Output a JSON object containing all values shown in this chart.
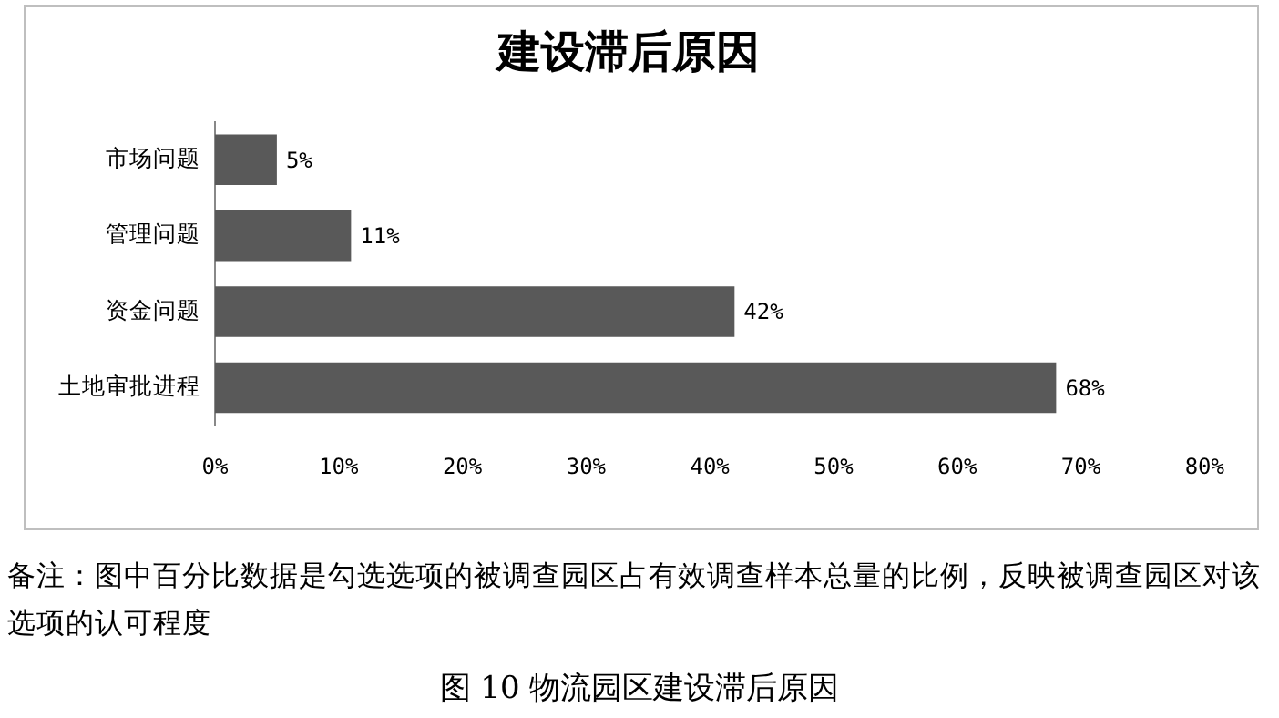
{
  "chart_data": {
    "type": "bar",
    "orientation": "horizontal",
    "title": "建设滞后原因",
    "categories": [
      "市场问题",
      "管理问题",
      "资金问题",
      "土地审批进程"
    ],
    "values": [
      5,
      11,
      42,
      68
    ],
    "color": "#595959",
    "value_labels": [
      "5%",
      "11%",
      "42%",
      "68%"
    ],
    "xlim": [
      0,
      80
    ],
    "xticks": [
      {
        "value": 0,
        "label": "0%"
      },
      {
        "value": 10,
        "label": "10%"
      },
      {
        "value": 20,
        "label": "20%"
      },
      {
        "value": 30,
        "label": "30%"
      },
      {
        "value": 40,
        "label": "40%"
      },
      {
        "value": 50,
        "label": "50%"
      },
      {
        "value": 60,
        "label": "60%"
      },
      {
        "value": 70,
        "label": "70%"
      },
      {
        "value": 80,
        "label": "80%"
      }
    ],
    "grid": false,
    "legend": false,
    "annotations": [
      "备注：图中百分比数据是勾选选项的被调查园区占有效调查样本总量的比例，反映被调查园区对该选项的认可程度",
      "图 10  物流园区建设滞后原因"
    ]
  }
}
